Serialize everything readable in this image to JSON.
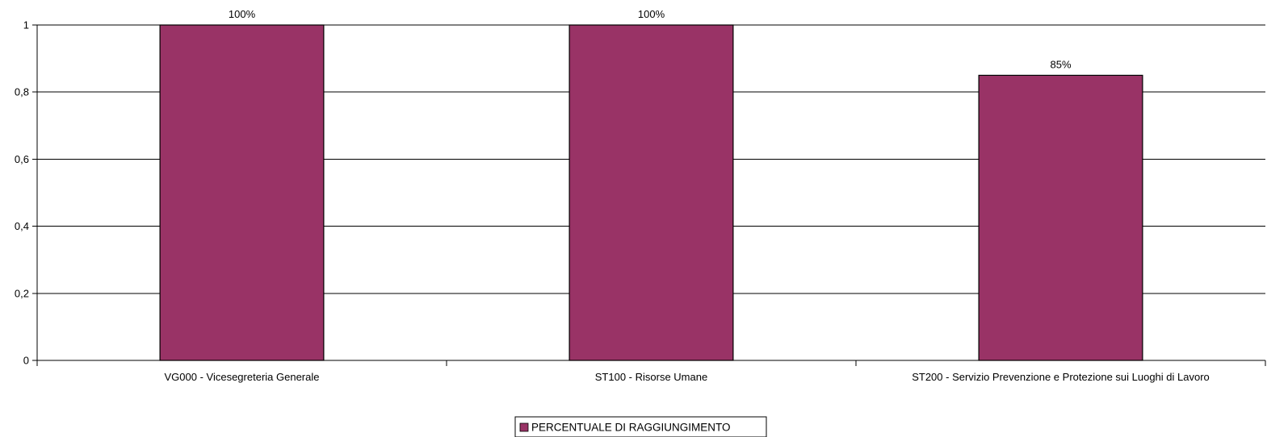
{
  "chart_data": {
    "type": "bar",
    "categories": [
      "VG000 - Vicesegreteria Generale",
      "ST100 - Risorse Umane",
      "ST200 - Servizio Prevenzione e Protezione sui Luoghi di Lavoro"
    ],
    "series": [
      {
        "name": "PERCENTUALE DI RAGGIUNGIMENTO",
        "values": [
          1.0,
          1.0,
          0.85
        ],
        "data_labels": [
          "100%",
          "100%",
          "85%"
        ],
        "color": "#993366"
      }
    ],
    "y_ticks": [
      "0",
      "0,2",
      "0,4",
      "0,6",
      "0,8",
      "1"
    ],
    "ylim": [
      0,
      1
    ],
    "grid": true,
    "legend_position": "bottom-center"
  }
}
